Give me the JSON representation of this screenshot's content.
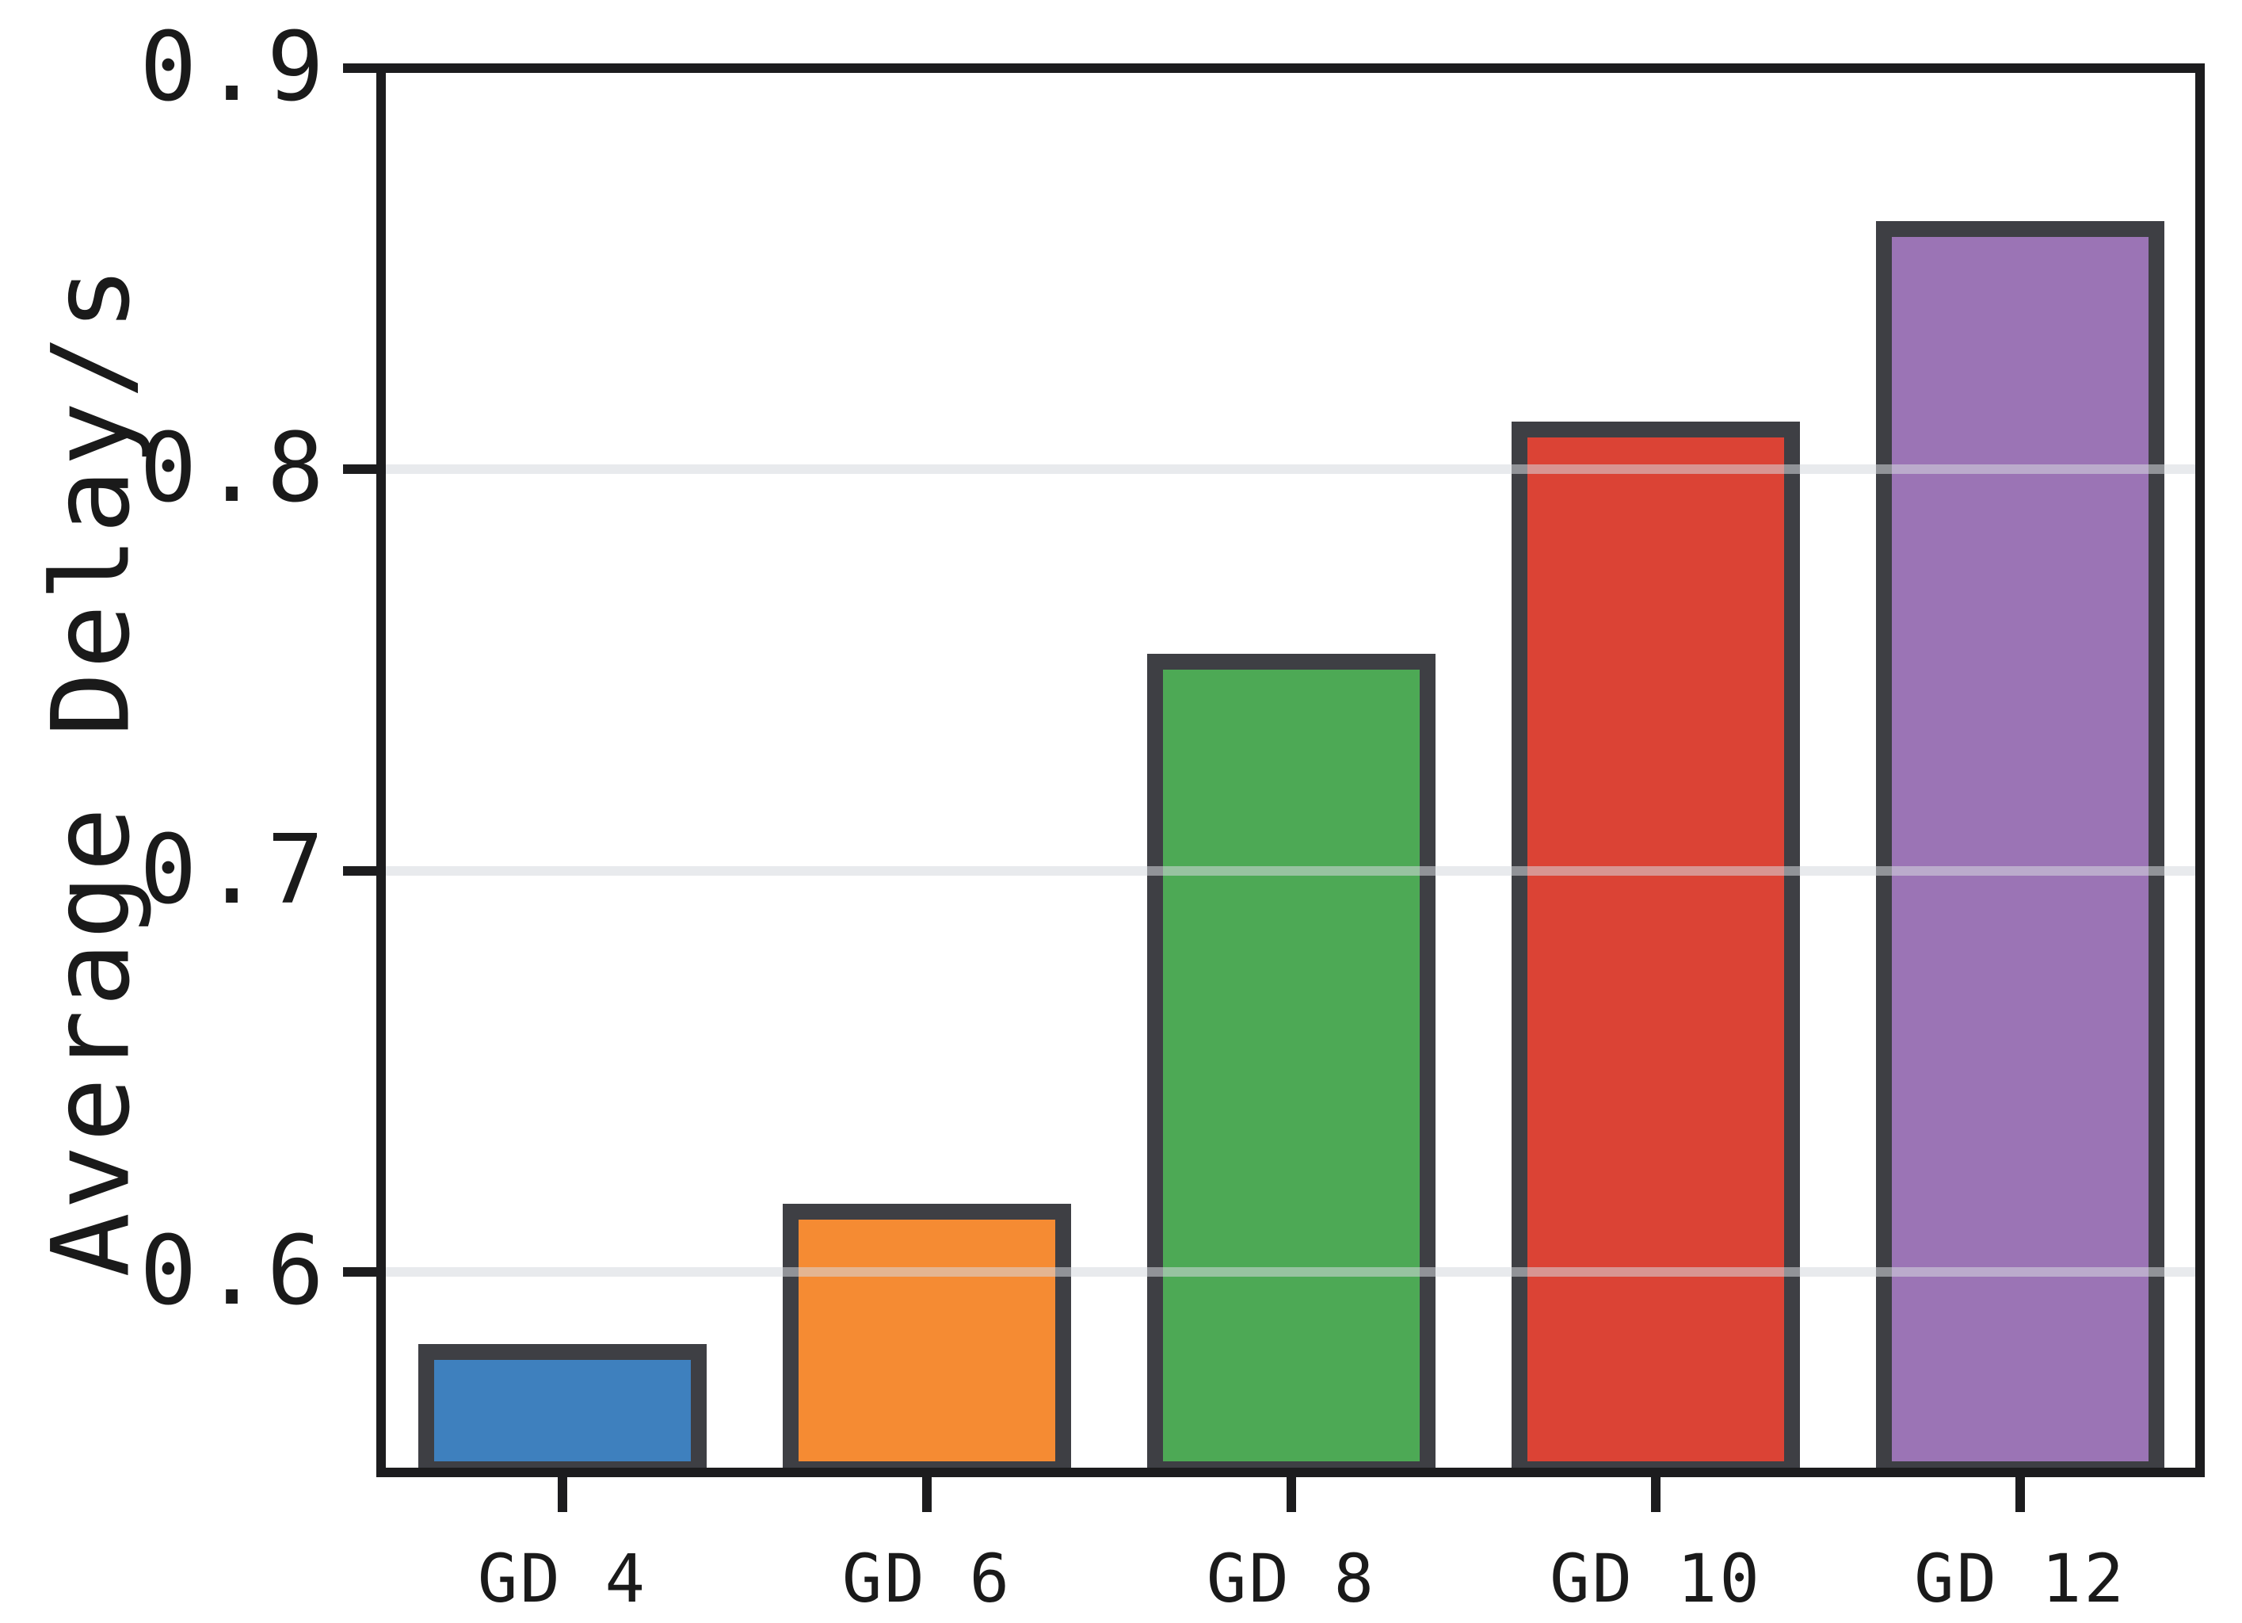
{
  "figure": {
    "background": "#ffffff",
    "title": "",
    "legend": "none"
  },
  "chart_data": {
    "type": "bar",
    "title": "",
    "xlabel": "",
    "ylabel": "Average Delay/s",
    "categories": [
      "GD 4",
      "GD 6",
      "GD 8",
      "GD 10",
      "GD 12"
    ],
    "values": [
      0.58,
      0.615,
      0.752,
      0.81,
      0.86
    ],
    "bar_colors": [
      "#3E80BE",
      "#F58B33",
      "#4DA955",
      "#DB4335",
      "#9B74B5"
    ],
    "bar_edge_color": "#3E3F44",
    "ylim": [
      0.55,
      0.9
    ],
    "yticks": [
      0.6,
      0.7,
      0.8,
      0.9
    ],
    "ytick_labels": [
      "0.6",
      "0.7",
      "0.8",
      "0.9"
    ],
    "grid": "horizontal gridlines at yticks, drawn light gray over bars",
    "axis_color": "#1C1C1E",
    "grid_color": "#E7E9EB",
    "legend_position": "none"
  }
}
